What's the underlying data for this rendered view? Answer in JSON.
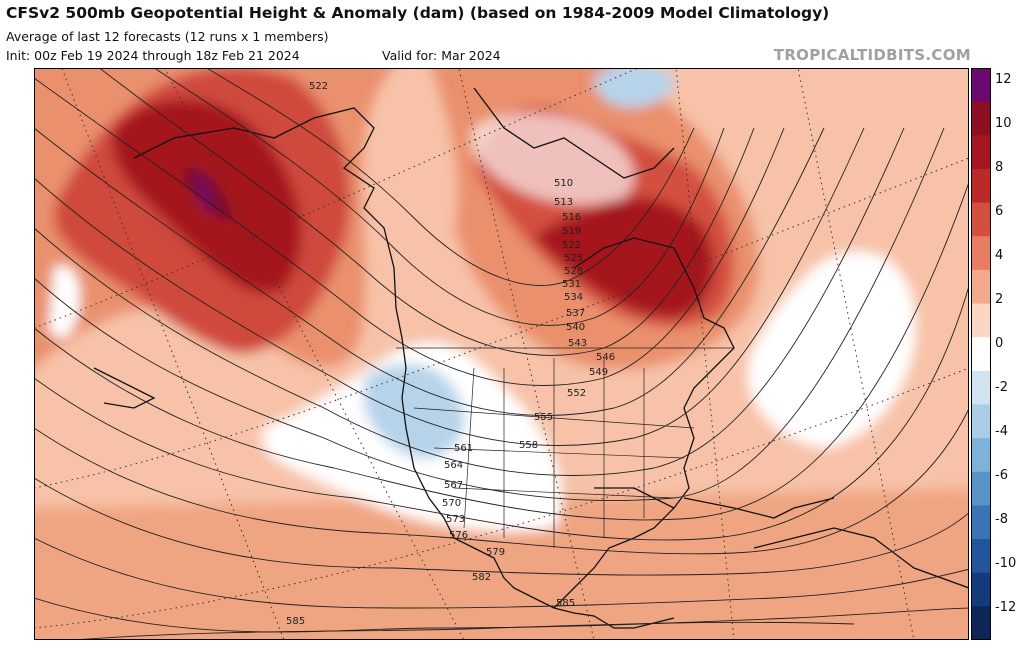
{
  "header": {
    "title": "CFSv2 500mb Geopotential Height & Anomaly (dam) (based on 1984-2009 Model Climatology)",
    "subtitle": "Average of last 12 forecasts (12 runs x 1 members)",
    "init": "Init: 00z Feb 19 2024 through 18z Feb 21 2024",
    "valid": "Valid for: Mar 2024",
    "watermark": "TROPICALTIDBITS.COM"
  },
  "colorbar": {
    "labels": [
      "12",
      "10",
      "8",
      "6",
      "4",
      "2",
      "0",
      "-2",
      "-4",
      "-6",
      "-8",
      "-10",
      "-12"
    ],
    "colors": [
      "#6a0a6e",
      "#8c0f23",
      "#a5171e",
      "#bc2a28",
      "#d34f3f",
      "#e77d62",
      "#f3a98c",
      "#fbd6c3",
      "#ffffff",
      "#cfe3f0",
      "#a9cde6",
      "#7fb2d9",
      "#5894c8",
      "#3a74b6",
      "#22559c",
      "#153a7c",
      "#0c2658"
    ]
  },
  "contour_labels": [
    "522",
    "510",
    "513",
    "516",
    "519",
    "522",
    "525",
    "528",
    "531",
    "534",
    "537",
    "540",
    "543",
    "546",
    "549",
    "552",
    "555",
    "558",
    "561",
    "564",
    "567",
    "570",
    "573",
    "576",
    "579",
    "582",
    "585",
    "585"
  ]
}
